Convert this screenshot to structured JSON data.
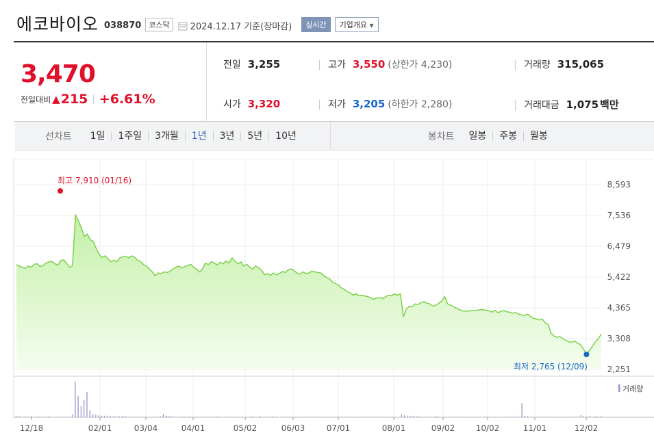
{
  "header": {
    "company": "에코바이오",
    "code": "038870",
    "market": "코스닥",
    "date": "2024.12.17 기준(장마감)",
    "realtime_label": "실시간",
    "overview_label": "기업개요"
  },
  "summary": {
    "current_price": "3,470",
    "change_label": "전일대비",
    "change": "215",
    "change_pct": "+6.61%",
    "prev_label": "전일",
    "prev": "3,255",
    "open_label": "시가",
    "open": "3,320",
    "high_label": "고가",
    "high": "3,550",
    "upper_limit": "(상한가 4,230)",
    "low_label": "저가",
    "low": "3,205",
    "lower_limit": "(하한가 2,280)",
    "volume_label": "거래량",
    "volume": "315,065",
    "amount_label": "거래대금",
    "amount": "1,075",
    "amount_unit": "백만"
  },
  "periods": {
    "line_label": "선차트",
    "line_items": [
      "1일",
      "1주일",
      "3개월",
      "1년",
      "3년",
      "5년",
      "10년"
    ],
    "active": "1년",
    "candle_label": "봉차트",
    "candle_items": [
      "일봉",
      "주봉",
      "월봉"
    ]
  },
  "colors": {
    "up": "#e0102a",
    "down": "#1966c8",
    "line": "#7bd14a",
    "area_top": "#c4f0a8",
    "area_bottom": "#f4fdee",
    "volume": "#9a93c9"
  },
  "chart_data": {
    "type": "area",
    "x_ticks": [
      "12/18",
      "02/01",
      "03/04",
      "04/01",
      "05/02",
      "06/03",
      "07/01",
      "08/01",
      "09/02",
      "10/02",
      "11/01",
      "12/02"
    ],
    "y_ticks": [
      "8,593",
      "7,536",
      "6,479",
      "5,422",
      "4,365",
      "3,308",
      "2,251"
    ],
    "ylim": [
      2251,
      8593
    ],
    "high_annotation": "최고 7,910 (01/16)",
    "low_annotation": "최저 2,765 (12/09)",
    "volume_label": "거래량",
    "series": [
      {
        "values": [
          5850,
          5800,
          5750,
          5720,
          5800,
          5760,
          5860,
          5880,
          5780,
          5820,
          5900,
          5940,
          5960,
          5880,
          5830,
          5990,
          6010,
          5900,
          5750,
          5820,
          7550,
          7350,
          7100,
          6820,
          6900,
          6700,
          6650,
          6400,
          6200,
          6100,
          6150,
          6050,
          5950,
          6000,
          5950,
          6080,
          6120,
          6140,
          6080,
          6150,
          6100,
          6000,
          5960,
          5850,
          5800,
          5700,
          5600,
          5470,
          5560,
          5540,
          5600,
          5580,
          5620,
          5700,
          5760,
          5800,
          5740,
          5780,
          5820,
          5860,
          5760,
          5700,
          5600,
          5700,
          5900,
          5850,
          5950,
          5900,
          5840,
          5930,
          5880,
          5980,
          5900,
          6080,
          5960,
          5880,
          5940,
          5800,
          5860,
          5760,
          5700,
          5800,
          5740,
          5660,
          5500,
          5540,
          5480,
          5560,
          5500,
          5540,
          5610,
          5580,
          5670,
          5700,
          5640,
          5560,
          5520,
          5600,
          5540,
          5560,
          5620,
          5600,
          5580,
          5560,
          5480,
          5400,
          5360,
          5250,
          5200,
          5150,
          5050,
          5000,
          4920,
          4880,
          4800,
          4850,
          4780,
          4800,
          4770,
          4750,
          4700,
          4660,
          4700,
          4720,
          4680,
          4750,
          4800,
          4780,
          4840,
          4800,
          4850,
          4050,
          4320,
          4420,
          4400,
          4500,
          4480,
          4550,
          4580,
          4520,
          4500,
          4420,
          4460,
          4520,
          4600,
          4750,
          4500,
          4460,
          4400,
          4350,
          4300,
          4260,
          4250,
          4250,
          4270,
          4280,
          4280,
          4300,
          4300,
          4280,
          4260,
          4220,
          4280,
          4200,
          4240,
          4270,
          4230,
          4210,
          4180,
          4200,
          4150,
          4120,
          4100,
          4150,
          4080,
          4000,
          3980,
          3950,
          3980,
          3850,
          3800,
          3500,
          3400,
          3350,
          3380,
          3300,
          3250,
          3200,
          3180,
          3220,
          3150,
          3100,
          2950,
          2765,
          2900,
          3050,
          3200,
          3300,
          3470
        ]
      }
    ],
    "volume_values": [
      2,
      2,
      1,
      2,
      1,
      2,
      1,
      1,
      2,
      1,
      1,
      2,
      1,
      1,
      2,
      1,
      1,
      2,
      1,
      6,
      70,
      42,
      22,
      34,
      50,
      14,
      6,
      5,
      4,
      3,
      3,
      3,
      2,
      2,
      2,
      2,
      3,
      2,
      1,
      1,
      2,
      1,
      1,
      1,
      1,
      1,
      1,
      1,
      1,
      2,
      6,
      3,
      2,
      2,
      1,
      1,
      1,
      2,
      1,
      2,
      1,
      1,
      1,
      1,
      1,
      1,
      1,
      1,
      2,
      1,
      1,
      1,
      1,
      1,
      1,
      1,
      1,
      1,
      1,
      1,
      2,
      1,
      1,
      2,
      1,
      1,
      1,
      2,
      1,
      1,
      1,
      1,
      1,
      1,
      1,
      1,
      1,
      1,
      1,
      1,
      1,
      1,
      1,
      1,
      1,
      1,
      1,
      1,
      1,
      1,
      1,
      1,
      1,
      1,
      1,
      1,
      1,
      1,
      1,
      1,
      1,
      1,
      1,
      1,
      1,
      1,
      1,
      1,
      1,
      1,
      1,
      6,
      4,
      3,
      3,
      2,
      2,
      2,
      1,
      1,
      1,
      1,
      1,
      2,
      1,
      1,
      1,
      1,
      1,
      1,
      1,
      1,
      1,
      1,
      1,
      1,
      1,
      1,
      1,
      1,
      1,
      1,
      1,
      1,
      1,
      1,
      1,
      1,
      1,
      1,
      1,
      1,
      28,
      3,
      2,
      1,
      1,
      1,
      1,
      1,
      1,
      1,
      1,
      1,
      1,
      1,
      1,
      1,
      1,
      1,
      1,
      1,
      4,
      2,
      1,
      2,
      1,
      2,
      1,
      2
    ]
  }
}
